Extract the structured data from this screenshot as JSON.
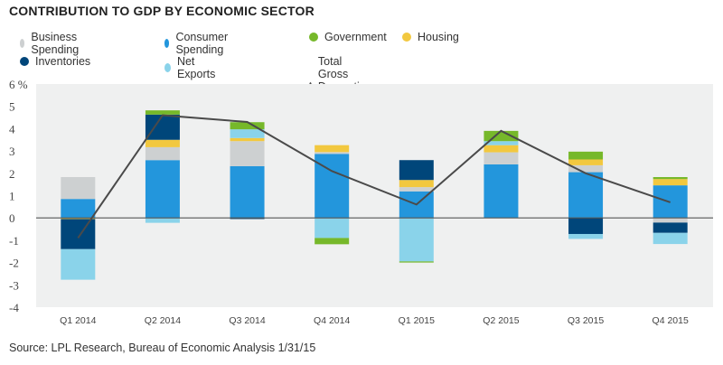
{
  "title": "CONTRIBUTION TO GDP BY ECONOMIC SECTOR",
  "source": "Source: LPL Research, Bureau of Economic Analysis   1/31/15",
  "chart_data": {
    "type": "bar",
    "stacked": true,
    "title": "CONTRIBUTION TO GDP BY ECONOMIC SECTOR",
    "categories": [
      "Q1 2014",
      "Q2 2014",
      "Q3 2014",
      "Q4 2014",
      "Q1 2015",
      "Q2 2015",
      "Q3 2015",
      "Q4 2015"
    ],
    "ylim": [
      -4,
      6
    ],
    "yticks": [
      "6 %",
      "5",
      "4",
      "3",
      "2",
      "1",
      "0",
      "-1",
      "-2",
      "-3",
      "-4"
    ],
    "ytick_values": [
      6,
      5,
      4,
      3,
      2,
      1,
      0,
      -1,
      -2,
      -3,
      -4
    ],
    "legend_placement": "top",
    "series": [
      {
        "name": "Consumer Spending",
        "color": "#2396dc",
        "values": [
          0.85,
          2.59,
          2.32,
          2.87,
          1.19,
          2.4,
          2.05,
          1.46
        ]
      },
      {
        "name": "Business Spending",
        "color": "#cdd0d1",
        "values": [
          0.98,
          0.58,
          1.12,
          0.08,
          0.19,
          0.54,
          0.31,
          -0.21
        ]
      },
      {
        "name": "Housing",
        "color": "#f2c83f",
        "values": [
          -0.05,
          0.33,
          0.14,
          0.31,
          0.32,
          0.32,
          0.26,
          0.28
        ]
      },
      {
        "name": "Inventories",
        "color": "#00467a",
        "values": [
          -1.35,
          1.13,
          -0.05,
          0,
          0.89,
          0,
          -0.72,
          -0.46
        ]
      },
      {
        "name": "Net Exports",
        "color": "#8ad3ea",
        "values": [
          -1.37,
          -0.22,
          0.39,
          -0.9,
          -1.95,
          0.18,
          -0.22,
          -0.5
        ]
      },
      {
        "name": "Government",
        "color": "#76b82a",
        "values": [
          0,
          0.19,
          0.32,
          -0.28,
          -0.05,
          0.46,
          0.35,
          0.09
        ]
      }
    ],
    "line": {
      "name": "Total Gross Domestic Product (GDP)",
      "color": "#4a4a4a",
      "values": [
        -0.9,
        4.6,
        4.3,
        2.1,
        0.6,
        3.9,
        2.0,
        0.7
      ]
    },
    "legend_order": [
      "Business Spending",
      "Consumer Spending",
      "Government",
      "Housing",
      "Inventories",
      "Net Exports",
      "Total Gross Domestic Product (GDP)"
    ],
    "plot_background": "#eff0f0",
    "grid": false
  }
}
